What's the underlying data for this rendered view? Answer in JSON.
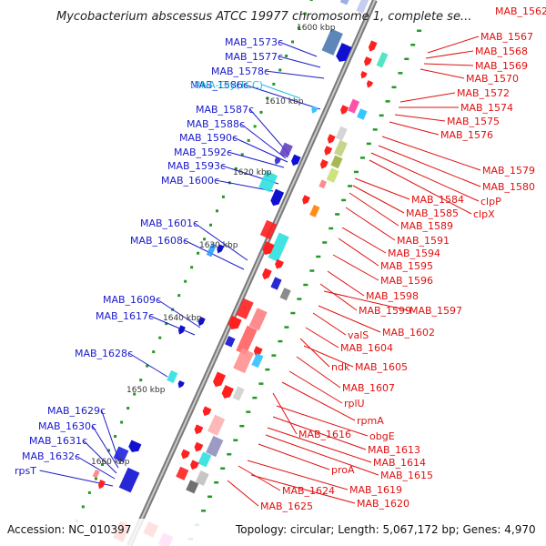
{
  "header": {
    "title": "Mycobacterium abscessus ATCC 19977 chromosome 1, complete se...",
    "corner_label": "MAB_1562"
  },
  "footer": {
    "accession": "Accession: NC_010397",
    "summary": "Topology: circular; Length: 5,067,172 bp; Genes: 4,970"
  },
  "colors": {
    "reverse_label": "#1a1acc",
    "forward_label": "#e01010",
    "trna_label": "#22bbdd",
    "backbone": "#808080",
    "tick": "#229922"
  },
  "kbp_labels": [
    "1600 kbp",
    "1610 kbp",
    "1620 kbp",
    "1630 kbp",
    "1640 kbp",
    "1650 kbp",
    "1660 kbp"
  ],
  "reverse_genes": [
    "MAB_1573c",
    "MAB_1577c",
    "MAB_1578c",
    "MAB_1586c",
    "MAB_1587c",
    "MAB_1588c",
    "MAB_1590c",
    "MAB_1592c",
    "MAB_1593c",
    "MAB_1600c",
    "MAB_1601c",
    "MAB_1608c",
    "MAB_1609c",
    "MAB_1617c",
    "MAB_1628c",
    "MAB_1629c",
    "MAB_1630c",
    "MAB_1631c",
    "MAB_1632c",
    "rpsT"
  ],
  "trna_genes": [
    "tRNA-Gly(TCC)"
  ],
  "forward_genes": [
    "MAB_1567",
    "MAB_1568",
    "MAB_1569",
    "MAB_1570",
    "MAB_1572",
    "MAB_1574",
    "MAB_1575",
    "MAB_1576",
    "MAB_1579",
    "MAB_1580",
    "clpP",
    "clpX",
    "MAB_1584",
    "MAB_1585",
    "MAB_1589",
    "MAB_1591",
    "MAB_1594",
    "MAB_1595",
    "MAB_1596",
    "MAB_1598",
    "MAB_1599",
    "MAB_1597",
    "valS",
    "MAB_1602",
    "MAB_1604",
    "ndk",
    "MAB_1605",
    "MAB_1607",
    "rplU",
    "rpmA",
    "MAB_1616",
    "obgE",
    "MAB_1613",
    "MAB_1614",
    "MAB_1615",
    "proA",
    "MAB_1619",
    "MAB_1624",
    "MAB_1620",
    "MAB_1625"
  ]
}
